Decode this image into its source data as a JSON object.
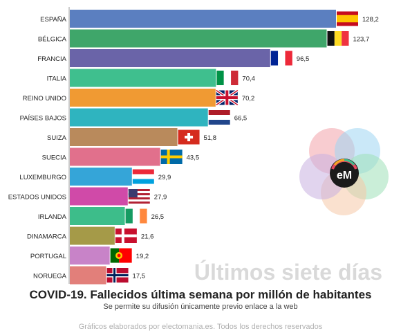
{
  "chart_data": {
    "type": "bar",
    "orientation": "horizontal",
    "title": "COVID-19. Fallecidos última semana por millón de habitantes",
    "subtitle": "Se permite su difusión únicamente previo enlace a la web",
    "watermark": "Últimos siete días",
    "credit": "Gráficos elaborados por electomania.es. Todos los derechos reservados",
    "logo_text": "eM",
    "categories": [
      "ESPAÑA",
      "BÉLGICA",
      "FRANCIA",
      "ITALIA",
      "REINO UNIDO",
      "PAÍSES BAJOS",
      "SUIZA",
      "SUECIA",
      "LUXEMBURGO",
      "ESTADOS UNIDOS",
      "IRLANDA",
      "DINAMARCA",
      "PORTUGAL",
      "NORUEGA"
    ],
    "values": [
      128.2,
      123.7,
      96.5,
      70.4,
      70.2,
      66.5,
      51.8,
      43.5,
      29.9,
      27.9,
      26.5,
      21.6,
      19.2,
      17.5
    ],
    "value_labels": [
      "128,2",
      "123,7",
      "96,5",
      "70,4",
      "70,2",
      "66,5",
      "51,8",
      "43,5",
      "29,9",
      "27,9",
      "26,5",
      "21,6",
      "19,2",
      "17,5"
    ],
    "colors": [
      "#5b7fc0",
      "#3fa66a",
      "#6a64a8",
      "#3fbf8e",
      "#f09a33",
      "#2fb4bf",
      "#b98a5c",
      "#e1708c",
      "#35a5d8",
      "#d04aa8",
      "#3dbd8a",
      "#a59a48",
      "#c883c8",
      "#e27f7a"
    ],
    "flags": [
      "spain-flag",
      "belgium-flag",
      "france-flag",
      "italy-flag",
      "uk-flag",
      "netherlands-flag",
      "switzerland-flag",
      "sweden-flag",
      "luxembourg-flag",
      "usa-flag",
      "ireland-flag",
      "denmark-flag",
      "portugal-flag",
      "norway-flag"
    ],
    "xlim": [
      0,
      128.2
    ],
    "grid": false,
    "legend": "none"
  }
}
